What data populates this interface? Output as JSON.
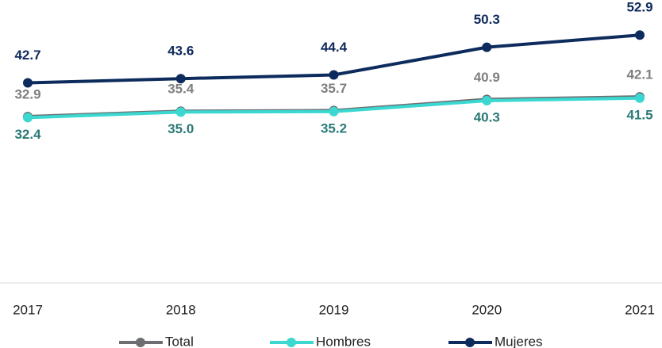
{
  "chart_data": {
    "type": "line",
    "categories": [
      "2017",
      "2018",
      "2019",
      "2020",
      "2021"
    ],
    "ylim": [
      -45,
      80
    ],
    "y2lim": [
      0,
      57
    ],
    "legend": "bottom",
    "series": [
      {
        "name": "Total",
        "color": "#6d6e71",
        "values": [
          32.9,
          35.4,
          35.7,
          40.9,
          42.1
        ],
        "value_labels": [
          "32.9",
          "35.4",
          "35.7",
          "40.9",
          "42.1"
        ]
      },
      {
        "name": "Hombres",
        "color": "#3ad8d1",
        "values": [
          32.4,
          35.0,
          35.2,
          40.3,
          41.5
        ],
        "value_labels": [
          "32.4",
          "35.0",
          "35.2",
          "40.3",
          "41.5"
        ]
      },
      {
        "name": "Mujeres",
        "color": "#0d2b5c",
        "axis": "y2",
        "values": [
          42.7,
          43.6,
          44.4,
          50.3,
          52.9
        ],
        "value_labels": [
          "42.7",
          "43.6",
          "44.4",
          "50.3",
          "52.9"
        ]
      }
    ]
  }
}
